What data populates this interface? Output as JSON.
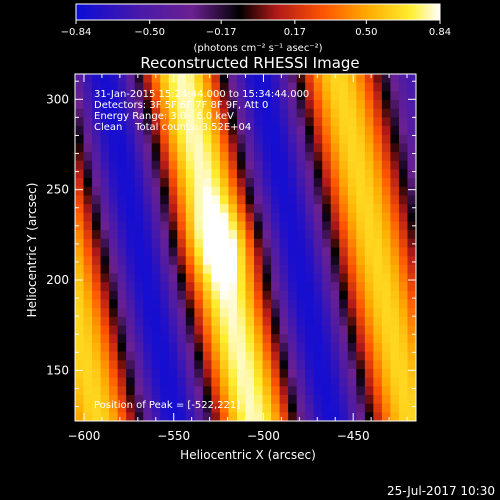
{
  "chart_data": {
    "type": "heatmap",
    "title": "Reconstructed RHESSI Image",
    "xlabel": "Heliocentric X (arcsec)",
    "ylabel": "Heliocentric Y (arcsec)",
    "xlim": [
      -605,
      -415
    ],
    "ylim": [
      122,
      314
    ],
    "xticks": [
      -600,
      -550,
      -500,
      -450
    ],
    "yticks": [
      150,
      200,
      250,
      300
    ],
    "colorbar": {
      "min": -0.84,
      "max": 0.84,
      "ticks": [
        -0.84,
        -0.5,
        -0.17,
        0.17,
        0.5,
        0.84
      ],
      "tick_labels": [
        "-0.84",
        "-0.50",
        "-0.17",
        "0.17",
        "0.50",
        "0.84"
      ],
      "units": "(photons cm⁻² s⁻¹ asec⁻²)"
    },
    "annotations": [
      "31-Jan-2015 15:24:44.000 to 15:34:44.000",
      "Detectors: 3F 5F 6F 7F 8F 9F, Att 0",
      "Energy Range: 3.0 - 6.0 keV",
      "Clean    Total counts: 3.52E+04"
    ],
    "peak_label": "Position of Peak = [-522,221]",
    "peak": [
      -522,
      221
    ],
    "fringe": {
      "base_x": -526,
      "base_y": 220,
      "tilt_x_per_y": -0.21,
      "period_arcsec": 88,
      "envelope_sigma": 82
    },
    "colors": [
      "#0b0bd8",
      "#4a1aa8",
      "#6b2090",
      "#000000",
      "#b01818",
      "#ff5500",
      "#ffaa00",
      "#ffee30",
      "#ffffff"
    ]
  },
  "footer": {
    "timestamp": "25-Jul-2017 10:30"
  }
}
